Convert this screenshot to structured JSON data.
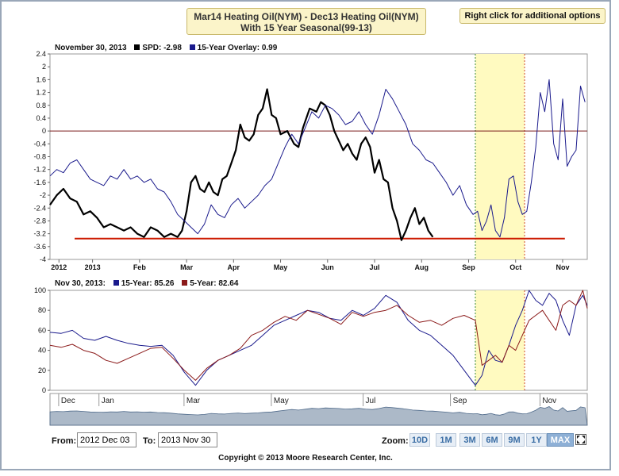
{
  "header": {
    "title_line1": "Mar14 Heating Oil(NYM) - Dec13 Heating Oil(NYM)",
    "title_line2": "With 15 Year Seasonal(99-13)",
    "right_click_label": "Right click for additional options"
  },
  "top_legend": {
    "date": "November 30, 2013",
    "spd_label": "SPD:",
    "spd_value": "-2.98",
    "overlay_label": "15-Year Overlay:",
    "overlay_value": "0.99"
  },
  "bottom_legend": {
    "date": "Nov 30, 2013:",
    "fifteen_label": "15-Year:",
    "fifteen_value": "85.26",
    "five_label": "5-Year:",
    "five_value": "82.64"
  },
  "colors": {
    "spd": "#000000",
    "overlay": "#1a1a8c",
    "five_year": "#8b1a1a",
    "support": "#cc1a00",
    "zero": "#7a1a1a",
    "highlight": "#fffac0",
    "navigator_fill": "#7f93aa"
  },
  "chart_data": [
    {
      "type": "line",
      "title": "Mar14 Heating Oil(NYM) - Dec13 Heating Oil(NYM) With 15 Year Seasonal(99-13)",
      "x_tick_labels": [
        "2012",
        "2013",
        "Feb",
        "Mar",
        "Apr",
        "May",
        "Jun",
        "Jul",
        "Aug",
        "Sep",
        "Oct",
        "Nov"
      ],
      "y_ticks": [
        2.4,
        2,
        1.6,
        1.2,
        0.8,
        0.4,
        0,
        -0.4,
        -0.8,
        -1.2,
        -1.6,
        -2,
        -2.4,
        -2.8,
        -3.2,
        -3.6,
        -4
      ],
      "y_tick_labels": [
        "2.4",
        "2",
        "1.6",
        "1.2",
        "0.8",
        "0.4",
        "0",
        "-0.4",
        "-0.8",
        "-1.2",
        "-1.6",
        "-2",
        "-2.4",
        "-2.8",
        "-3.2",
        "-3.6",
        "-4"
      ],
      "ylim": [
        -4,
        2.4
      ],
      "x_range": [
        0,
        12
      ],
      "x_unit": "months from 2012 Dec 03",
      "reference_lines": [
        {
          "y": 0
        },
        {
          "y": -3.35,
          "x_from": 0.55,
          "x_to": 11.5
        }
      ],
      "highlight_x": [
        9.5,
        10.6
      ],
      "series": [
        {
          "name": "SPD",
          "x": [
            0,
            0.15,
            0.3,
            0.45,
            0.6,
            0.75,
            0.9,
            1.05,
            1.2,
            1.35,
            1.5,
            1.65,
            1.8,
            1.95,
            2.1,
            2.25,
            2.4,
            2.55,
            2.7,
            2.85,
            2.95,
            3.05,
            3.15,
            3.25,
            3.35,
            3.45,
            3.55,
            3.65,
            3.75,
            3.85,
            3.95,
            4.05,
            4.15,
            4.25,
            4.35,
            4.45,
            4.55,
            4.65,
            4.75,
            4.85,
            4.95,
            5.05,
            5.15,
            5.3,
            5.45,
            5.55,
            5.65,
            5.8,
            5.95,
            6.05,
            6.15,
            6.25,
            6.35,
            6.45,
            6.55,
            6.65,
            6.75,
            6.85,
            6.95,
            7.05,
            7.15,
            7.25,
            7.35,
            7.45,
            7.55,
            7.65,
            7.75,
            7.85,
            7.95,
            8.05,
            8.15,
            8.25,
            8.35,
            8.45,
            8.55
          ],
          "y": [
            -2.3,
            -2.0,
            -1.8,
            -2.1,
            -2.2,
            -2.6,
            -2.5,
            -2.7,
            -3.0,
            -2.9,
            -3.0,
            -3.1,
            -3.0,
            -3.2,
            -3.3,
            -3.0,
            -3.1,
            -3.3,
            -3.2,
            -3.3,
            -3.1,
            -2.5,
            -1.6,
            -1.4,
            -1.8,
            -1.9,
            -1.6,
            -1.9,
            -2.0,
            -1.5,
            -1.4,
            -1.0,
            -0.6,
            0.2,
            -0.2,
            -0.3,
            -0.1,
            0.5,
            0.7,
            1.3,
            0.5,
            0.4,
            -0.1,
            0.0,
            -0.4,
            -0.5,
            0.1,
            0.7,
            0.6,
            0.9,
            0.8,
            0.5,
            0.0,
            -0.3,
            -0.6,
            -0.4,
            -0.7,
            -0.9,
            -0.4,
            -0.2,
            -0.5,
            -1.3,
            -0.9,
            -1.5,
            -1.6,
            -2.4,
            -2.8,
            -3.4,
            -3.1,
            -2.7,
            -2.4,
            -2.9,
            -2.7,
            -3.1,
            -3.3
          ]
        },
        {
          "name": "15-Year Overlay",
          "x": [
            0,
            0.15,
            0.3,
            0.45,
            0.6,
            0.75,
            0.9,
            1.05,
            1.2,
            1.35,
            1.5,
            1.65,
            1.8,
            1.95,
            2.1,
            2.25,
            2.4,
            2.55,
            2.7,
            2.85,
            3.0,
            3.15,
            3.3,
            3.45,
            3.6,
            3.75,
            3.9,
            4.05,
            4.2,
            4.35,
            4.5,
            4.65,
            4.8,
            4.95,
            5.1,
            5.25,
            5.4,
            5.55,
            5.7,
            5.85,
            6.0,
            6.15,
            6.3,
            6.45,
            6.6,
            6.75,
            6.9,
            7.05,
            7.2,
            7.35,
            7.5,
            7.65,
            7.8,
            7.95,
            8.1,
            8.25,
            8.4,
            8.55,
            8.7,
            8.85,
            9.0,
            9.15,
            9.3,
            9.45,
            9.55,
            9.65,
            9.75,
            9.85,
            9.95,
            10.05,
            10.15,
            10.25,
            10.35,
            10.45,
            10.55,
            10.65,
            10.75,
            10.85,
            10.95,
            11.05,
            11.15,
            11.25,
            11.35,
            11.45,
            11.55,
            11.65,
            11.75,
            11.85,
            11.95
          ],
          "y": [
            -1.4,
            -1.2,
            -1.3,
            -1.0,
            -0.9,
            -1.2,
            -1.5,
            -1.6,
            -1.7,
            -1.4,
            -1.5,
            -1.2,
            -1.5,
            -1.4,
            -1.6,
            -1.5,
            -1.8,
            -1.9,
            -2.2,
            -2.6,
            -2.8,
            -3.0,
            -3.2,
            -2.9,
            -2.3,
            -2.6,
            -2.7,
            -2.3,
            -2.1,
            -2.4,
            -2.2,
            -2.0,
            -1.7,
            -1.5,
            -1.0,
            -0.5,
            -0.1,
            -0.4,
            0.1,
            0.6,
            0.4,
            0.8,
            0.7,
            0.5,
            0.2,
            0.3,
            0.6,
            0.2,
            -0.1,
            0.5,
            1.3,
            1.0,
            0.6,
            0.2,
            -0.4,
            -0.6,
            -0.9,
            -1.0,
            -1.3,
            -1.6,
            -2.0,
            -1.7,
            -2.3,
            -2.6,
            -2.5,
            -3.1,
            -2.8,
            -2.3,
            -3.1,
            -3.3,
            -2.7,
            -1.5,
            -1.4,
            -2.2,
            -2.6,
            -2.5,
            -1.6,
            -0.5,
            1.2,
            0.6,
            1.6,
            -0.4,
            -0.9,
            1.0,
            -1.1,
            -0.8,
            -0.6,
            1.4,
            0.9
          ]
        }
      ]
    },
    {
      "type": "line",
      "title": "",
      "y_ticks": [
        0,
        20,
        40,
        60,
        80,
        100
      ],
      "y_tick_labels": [
        "0",
        "20",
        "40",
        "60",
        "80",
        "100"
      ],
      "ylim": [
        0,
        100
      ],
      "x_range": [
        0,
        12
      ],
      "highlight_x": [
        9.5,
        10.6
      ],
      "series": [
        {
          "name": "15-Year",
          "x": [
            0,
            0.25,
            0.5,
            0.75,
            1.0,
            1.25,
            1.5,
            1.75,
            2.0,
            2.25,
            2.5,
            2.75,
            3.0,
            3.25,
            3.5,
            3.75,
            4.0,
            4.25,
            4.5,
            4.75,
            5.0,
            5.25,
            5.5,
            5.75,
            6.0,
            6.25,
            6.5,
            6.75,
            7.0,
            7.25,
            7.5,
            7.75,
            8.0,
            8.25,
            8.5,
            8.75,
            9.0,
            9.25,
            9.5,
            9.65,
            9.8,
            9.95,
            10.1,
            10.25,
            10.4,
            10.55,
            10.7,
            10.85,
            11.0,
            11.15,
            11.3,
            11.45,
            11.6,
            11.75,
            11.9,
            12.0
          ],
          "y": [
            58,
            57,
            60,
            52,
            50,
            54,
            50,
            47,
            45,
            44,
            45,
            35,
            18,
            5,
            20,
            30,
            35,
            40,
            45,
            55,
            65,
            70,
            75,
            80,
            78,
            72,
            70,
            80,
            75,
            82,
            95,
            88,
            70,
            60,
            55,
            45,
            35,
            20,
            5,
            15,
            40,
            30,
            28,
            45,
            65,
            80,
            100,
            90,
            85,
            97,
            90,
            70,
            55,
            85,
            95,
            85
          ]
        },
        {
          "name": "5-Year",
          "x": [
            0,
            0.25,
            0.5,
            0.75,
            1.0,
            1.25,
            1.5,
            1.75,
            2.0,
            2.25,
            2.5,
            2.75,
            3.0,
            3.25,
            3.5,
            3.75,
            4.0,
            4.25,
            4.5,
            4.75,
            5.0,
            5.25,
            5.5,
            5.75,
            6.0,
            6.25,
            6.5,
            6.75,
            7.0,
            7.25,
            7.5,
            7.75,
            8.0,
            8.25,
            8.5,
            8.75,
            9.0,
            9.25,
            9.5,
            9.65,
            9.8,
            9.95,
            10.1,
            10.25,
            10.4,
            10.55,
            10.7,
            10.85,
            11.0,
            11.15,
            11.3,
            11.45,
            11.6,
            11.75,
            11.9,
            12.0
          ],
          "y": [
            45,
            43,
            46,
            40,
            37,
            30,
            27,
            32,
            37,
            42,
            43,
            32,
            20,
            10,
            22,
            30,
            35,
            42,
            55,
            60,
            68,
            74,
            70,
            80,
            76,
            72,
            66,
            78,
            74,
            78,
            80,
            85,
            75,
            68,
            70,
            65,
            72,
            75,
            70,
            25,
            30,
            35,
            28,
            45,
            40,
            55,
            70,
            75,
            80,
            70,
            60,
            85,
            90,
            85,
            100,
            82
          ]
        }
      ]
    }
  ],
  "navigator": {
    "labels": [
      "Dec",
      "Jan",
      "Mar",
      "May",
      "Jul",
      "Sep",
      "Nov"
    ]
  },
  "controls": {
    "from_label": "From:",
    "from_value": "2012 Dec 03",
    "to_label": "To:",
    "to_value": "2013 Nov 30",
    "zoom_label": "Zoom:",
    "zoom_buttons": [
      "10D",
      "1M",
      "3M",
      "6M",
      "9M",
      "1Y",
      "MAX"
    ],
    "zoom_active": "MAX"
  },
  "footer": {
    "copyright": "Copyright © 2013 Moore Research Center, Inc."
  }
}
